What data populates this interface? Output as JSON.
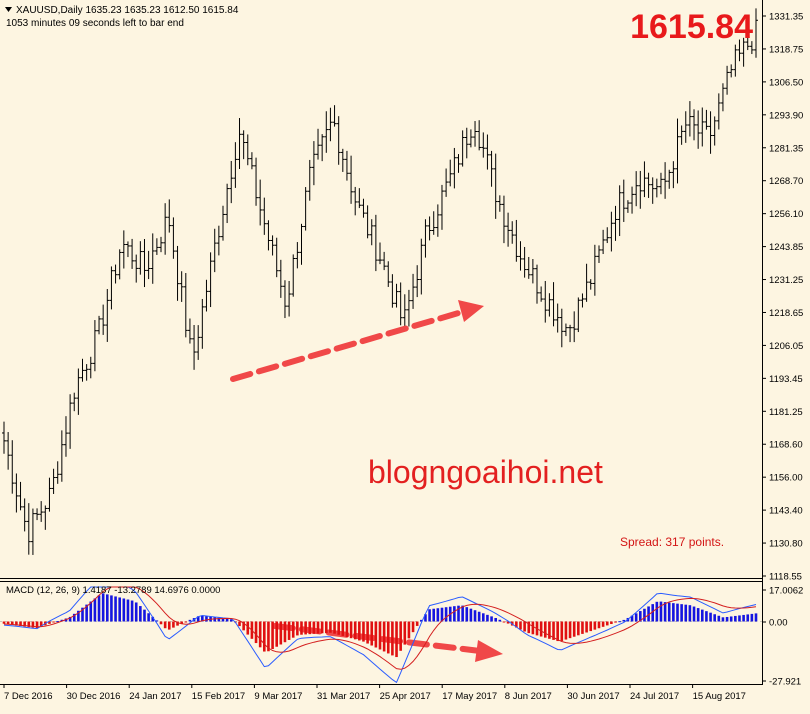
{
  "header": {
    "symbol_line": "XAUUSD,Daily  1635.23 1635.23 1612.50 1615.84",
    "timer_line": "1053 minutes 09 seconds left to bar end",
    "big_price": "1615.84"
  },
  "watermark": "blogngoaihoi.net",
  "spread_text": "Spread: 317 points.",
  "macd_label": "MACD (12, 26, 9) 1.4187 -13.2789 14.6976 0.0000",
  "colors": {
    "background": "#fdf5e1",
    "candle": "#000000",
    "big_price": "#e8191b",
    "watermark": "#e32020",
    "arrow": "#f04848",
    "spread": "#d31515",
    "macd_pos": "#1515e0",
    "macd_neg": "#e01010",
    "macd_line": "#2a5cff",
    "signal_line": "#d41f1f"
  },
  "price_axis": {
    "ticks": [
      "1331.35",
      "1318.75",
      "1306.50",
      "1293.90",
      "1281.35",
      "1268.70",
      "1256.10",
      "1243.85",
      "1231.25",
      "1218.65",
      "1206.05",
      "1193.45",
      "1181.25",
      "1168.60",
      "1156.00",
      "1143.40",
      "1130.80",
      "1118.55"
    ]
  },
  "macd_axis": {
    "ticks": [
      "17.0062",
      "0.00",
      "-27.921"
    ]
  },
  "time_axis": {
    "labels": [
      "7 Dec 2016",
      "30 Dec 2016",
      "24 Jan 2017",
      "15 Feb 2017",
      "9 Mar 2017",
      "31 Mar 2017",
      "25 Apr 2017",
      "17 May 2017",
      "8 Jun 2017",
      "30 Jun 2017",
      "24 Jul 2017",
      "15 Aug 2017"
    ]
  },
  "chart_data": {
    "type": "line",
    "symbol": "XAUUSD",
    "timeframe": "Daily",
    "x": [
      "7 Dec 2016",
      "30 Dec 2016",
      "24 Jan 2017",
      "15 Feb 2017",
      "9 Mar 2017",
      "31 Mar 2017",
      "25 Apr 2017",
      "17 May 2017",
      "8 Jun 2017",
      "30 Jun 2017",
      "24 Jul 2017",
      "15 Aug 2017"
    ],
    "price_keypoints": [
      1170,
      1135,
      1150,
      1190,
      1210,
      1245,
      1235,
      1255,
      1200,
      1245,
      1288,
      1255,
      1222,
      1270,
      1292,
      1260,
      1240,
      1214,
      1250,
      1270,
      1293,
      1262,
      1240,
      1225,
      1212,
      1232,
      1258,
      1270,
      1265,
      1290,
      1285,
      1312,
      1325
    ],
    "ylim": [
      1118.55,
      1331.35
    ],
    "macd_hist_keypoints": [
      -1,
      -3,
      2,
      14,
      10,
      -4,
      3,
      1,
      -14,
      -6,
      -5,
      -9,
      -16,
      6,
      8,
      2,
      -5,
      -9,
      -4,
      1,
      10,
      8,
      2,
      4
    ],
    "macd_ylim": [
      -27.921,
      17.0062
    ]
  }
}
